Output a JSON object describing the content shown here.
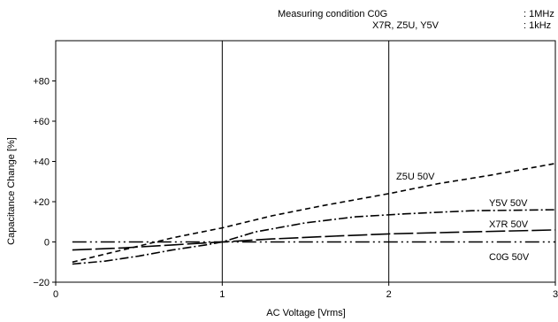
{
  "conditions": {
    "heading": "Measuring condition",
    "rows": [
      {
        "types": "C0G",
        "freq": ": 1MHz"
      },
      {
        "types": "X7R, Z5U, Y5V",
        "freq": ": 1kHz"
      }
    ]
  },
  "chart_data": {
    "type": "line",
    "xlabel": "AC Voltage [Vrms]",
    "ylabel": "Capacitance Change [%]",
    "xlim": [
      0,
      3
    ],
    "ylim": [
      -20,
      100
    ],
    "x_ticks": [
      "0",
      "1",
      "2",
      "3"
    ],
    "y_ticks": [
      "+80",
      "+60",
      "+40",
      "+20",
      "0",
      "−20"
    ],
    "grid": {
      "vertical": [
        1,
        2
      ],
      "horizontal": [
        0
      ]
    },
    "series": [
      {
        "name": "Z5U 50V",
        "style": "dashed",
        "x": [
          0.1,
          0.3,
          0.5,
          0.7,
          1.0,
          1.3,
          1.6,
          2.0,
          2.3,
          2.6,
          3.0
        ],
        "y": [
          -10,
          -6,
          -2,
          2,
          7,
          13,
          18,
          24,
          29,
          33,
          39
        ]
      },
      {
        "name": "Y5V 50V",
        "style": "dashdot",
        "x": [
          0.1,
          0.3,
          0.5,
          0.7,
          0.9,
          1.0,
          1.2,
          1.5,
          1.8,
          2.1,
          2.5,
          3.0
        ],
        "y": [
          -11,
          -9.5,
          -7,
          -4,
          -1.5,
          0,
          5,
          9.5,
          12.5,
          14,
          15.5,
          16
        ]
      },
      {
        "name": "X7R 50V",
        "style": "longdash",
        "x": [
          0.1,
          0.4,
          0.7,
          1.0,
          1.3,
          1.7,
          2.0,
          2.5,
          3.0
        ],
        "y": [
          -4,
          -3,
          -1.5,
          0,
          1.5,
          3,
          4,
          5,
          6
        ]
      },
      {
        "name": "C0G 50V",
        "style": "dashdotdot",
        "x": [
          0.1,
          3.0
        ],
        "y": [
          0,
          0
        ]
      }
    ],
    "annotations": [
      "Z5U 50V",
      "Y5V 50V",
      "X7R 50V",
      "C0G 50V"
    ]
  }
}
